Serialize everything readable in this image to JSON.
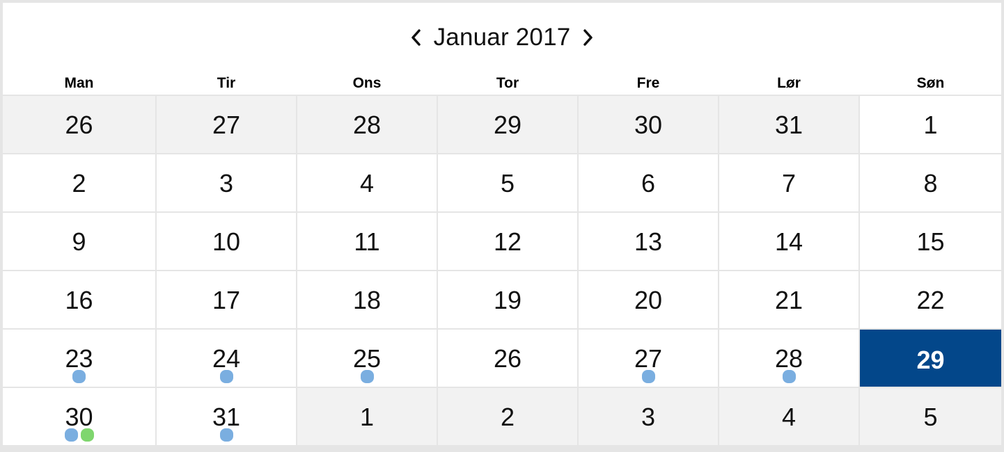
{
  "calendar": {
    "month_title": "Januar 2017",
    "prev_icon": "chevron-left-icon",
    "next_icon": "chevron-right-icon",
    "weekdays": [
      "Man",
      "Tir",
      "Ons",
      "Tor",
      "Fre",
      "Lør",
      "Søn"
    ],
    "colors": {
      "blue_dot": "#7aaee0",
      "green_dot": "#7fd66e",
      "selected": "#03478a",
      "outside": "#f2f2f2"
    },
    "weeks": [
      [
        {
          "day": "26",
          "outside": true,
          "dots": []
        },
        {
          "day": "27",
          "outside": true,
          "dots": []
        },
        {
          "day": "28",
          "outside": true,
          "dots": []
        },
        {
          "day": "29",
          "outside": true,
          "dots": []
        },
        {
          "day": "30",
          "outside": true,
          "dots": []
        },
        {
          "day": "31",
          "outside": true,
          "dots": []
        },
        {
          "day": "1",
          "outside": false,
          "dots": []
        }
      ],
      [
        {
          "day": "2",
          "outside": false,
          "dots": []
        },
        {
          "day": "3",
          "outside": false,
          "dots": []
        },
        {
          "day": "4",
          "outside": false,
          "dots": []
        },
        {
          "day": "5",
          "outside": false,
          "dots": []
        },
        {
          "day": "6",
          "outside": false,
          "dots": []
        },
        {
          "day": "7",
          "outside": false,
          "dots": []
        },
        {
          "day": "8",
          "outside": false,
          "dots": []
        }
      ],
      [
        {
          "day": "9",
          "outside": false,
          "dots": []
        },
        {
          "day": "10",
          "outside": false,
          "dots": []
        },
        {
          "day": "11",
          "outside": false,
          "dots": []
        },
        {
          "day": "12",
          "outside": false,
          "dots": []
        },
        {
          "day": "13",
          "outside": false,
          "dots": []
        },
        {
          "day": "14",
          "outside": false,
          "dots": []
        },
        {
          "day": "15",
          "outside": false,
          "dots": []
        }
      ],
      [
        {
          "day": "16",
          "outside": false,
          "dots": []
        },
        {
          "day": "17",
          "outside": false,
          "dots": []
        },
        {
          "day": "18",
          "outside": false,
          "dots": []
        },
        {
          "day": "19",
          "outside": false,
          "dots": []
        },
        {
          "day": "20",
          "outside": false,
          "dots": []
        },
        {
          "day": "21",
          "outside": false,
          "dots": []
        },
        {
          "day": "22",
          "outside": false,
          "dots": []
        }
      ],
      [
        {
          "day": "23",
          "outside": false,
          "dots": [
            "blue"
          ]
        },
        {
          "day": "24",
          "outside": false,
          "dots": [
            "blue"
          ]
        },
        {
          "day": "25",
          "outside": false,
          "dots": [
            "blue"
          ]
        },
        {
          "day": "26",
          "outside": false,
          "dots": []
        },
        {
          "day": "27",
          "outside": false,
          "dots": [
            "blue"
          ]
        },
        {
          "day": "28",
          "outside": false,
          "dots": [
            "blue"
          ]
        },
        {
          "day": "29",
          "outside": false,
          "selected": true,
          "dots": []
        }
      ],
      [
        {
          "day": "30",
          "outside": false,
          "dots": [
            "blue",
            "green"
          ]
        },
        {
          "day": "31",
          "outside": false,
          "dots": [
            "blue"
          ]
        },
        {
          "day": "1",
          "outside": true,
          "dots": []
        },
        {
          "day": "2",
          "outside": true,
          "dots": []
        },
        {
          "day": "3",
          "outside": true,
          "dots": []
        },
        {
          "day": "4",
          "outside": true,
          "dots": []
        },
        {
          "day": "5",
          "outside": true,
          "dots": []
        }
      ]
    ]
  }
}
